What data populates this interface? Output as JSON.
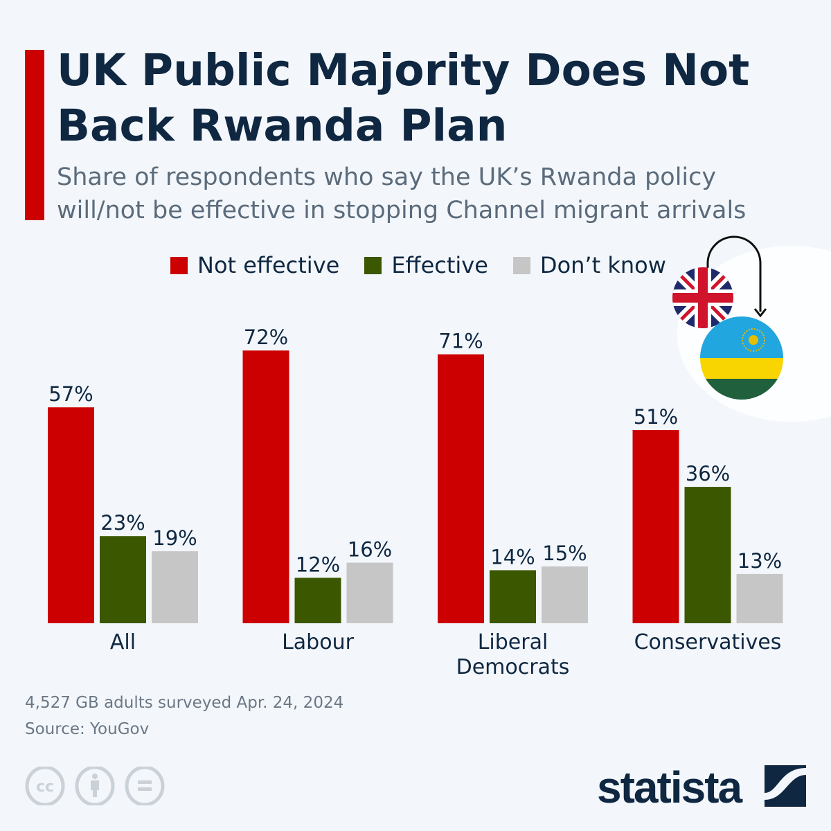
{
  "title": "UK Public Majority Does Not Back Rwanda Plan",
  "subtitle": "Share of respondents who say the UK’s Rwanda policy will/not be effective in stopping Channel migrant arrivals",
  "chart_data": {
    "type": "bar",
    "title": "UK Public Majority Does Not Back Rwanda Plan",
    "categories": [
      "All",
      "Labour",
      "Liberal Democrats",
      "Conservatives"
    ],
    "series": [
      {
        "name": "Not effective",
        "color": "#cc0000",
        "values": [
          57,
          72,
          71,
          51
        ]
      },
      {
        "name": "Effective",
        "color": "#3b5700",
        "values": [
          23,
          12,
          14,
          36
        ]
      },
      {
        "name": "Don’t know",
        "color": "#c6c6c6",
        "values": [
          19,
          16,
          15,
          13
        ]
      }
    ],
    "value_suffix": "%",
    "ylim": [
      0,
      75
    ],
    "grid": false,
    "legend": "top"
  },
  "footer": {
    "note": "4,527 GB adults surveyed Apr. 24, 2024",
    "source": "Source: YouGov",
    "brand": "statista"
  },
  "icons": [
    "uk-flag-icon",
    "rwanda-flag-icon",
    "arrow-icon",
    "cc-icon",
    "attribution-icon",
    "no-derivatives-icon",
    "statista-logo-icon"
  ]
}
